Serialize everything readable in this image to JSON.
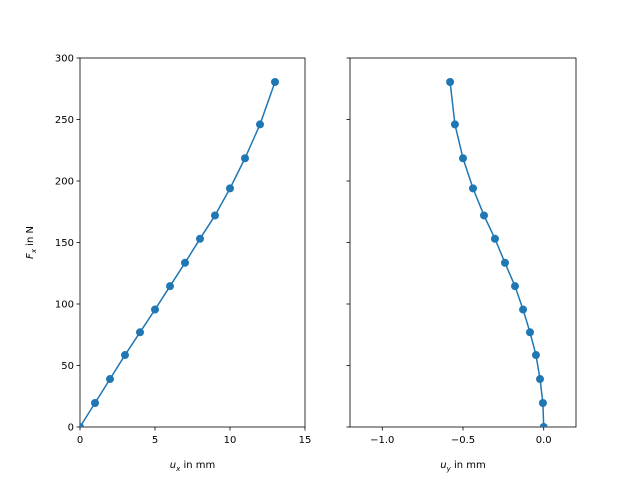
{
  "chart_data": [
    {
      "type": "line",
      "xlabel": {
        "symbol": "u",
        "subscript": "x",
        "text": " in mm"
      },
      "ylabel": {
        "symbol": "F",
        "subscript": "x",
        "text": " in N"
      },
      "xlim": [
        0,
        15
      ],
      "xticks": [
        0,
        5,
        10,
        15
      ],
      "ylim": [
        0,
        300
      ],
      "yticks": [
        0,
        50,
        100,
        150,
        200,
        250,
        300
      ],
      "ytick_labels": true,
      "marker": "circle",
      "series": [
        {
          "color": "#1f77b4",
          "x": [
            0,
            1,
            2,
            3,
            4,
            5,
            6,
            7,
            8,
            9,
            10,
            11,
            12,
            13
          ],
          "values": [
            0,
            19.5,
            39,
            58.5,
            77,
            95.5,
            114.5,
            133.5,
            153,
            172,
            194,
            218.5,
            246,
            280.5
          ]
        }
      ]
    },
    {
      "type": "line",
      "xlabel": {
        "symbol": "u",
        "subscript": "y",
        "text": " in mm"
      },
      "xlim": [
        -1.2,
        0.2
      ],
      "xticks": [
        {
          "value": -1.0,
          "label": "−1.0"
        },
        {
          "value": -0.5,
          "label": "−0.5"
        },
        {
          "value": 0.0,
          "label": "0.0"
        }
      ],
      "ylim": [
        0,
        300
      ],
      "yticks": [
        0,
        50,
        100,
        150,
        200,
        250,
        300
      ],
      "ytick_labels": false,
      "marker": "circle",
      "series": [
        {
          "color": "#1f77b4",
          "x": [
            0,
            -0.005,
            -0.023,
            -0.048,
            -0.085,
            -0.128,
            -0.178,
            -0.24,
            -0.302,
            -0.37,
            -0.438,
            -0.5,
            -0.55,
            -0.58
          ],
          "values": [
            0,
            19.5,
            39,
            58.5,
            77,
            95.5,
            114.5,
            133.5,
            153,
            172,
            194,
            218.5,
            246,
            280.5
          ]
        }
      ]
    }
  ]
}
